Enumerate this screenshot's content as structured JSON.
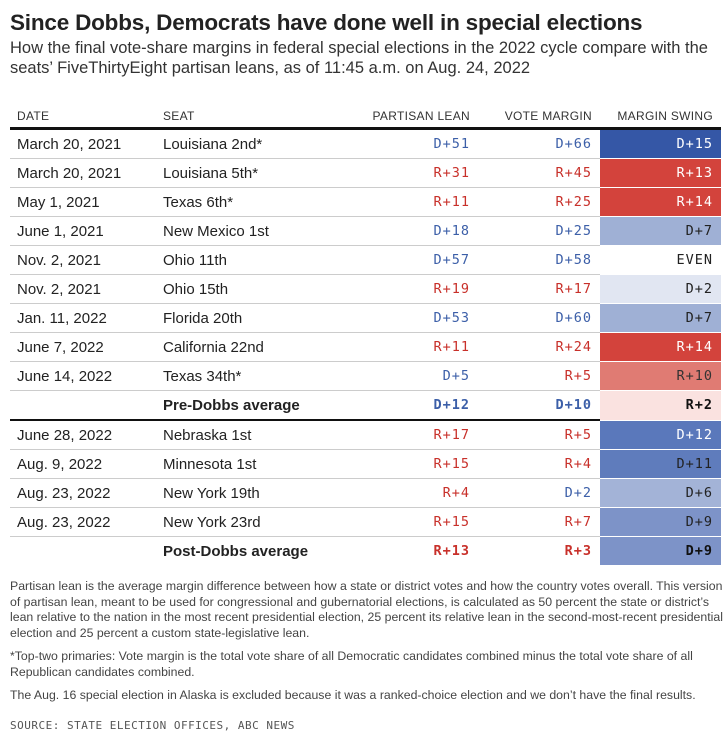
{
  "title": "Since Dobbs, Democrats have done well in special elections",
  "subtitle": "How the final vote-share margins in federal special elections in the 2022 cycle compare with the seats’ FiveThirtyEight partisan leans, as of 11:45 a.m. on Aug. 24, 2022",
  "colors": {
    "dem": "#3c5fa8",
    "rep": "#c8302a"
  },
  "chart_data": {
    "type": "table",
    "columns": [
      "DATE",
      "SEAT",
      "PARTISAN LEAN",
      "VOTE MARGIN",
      "MARGIN SWING"
    ],
    "rows": [
      {
        "date": "March 20, 2021",
        "seat": "Louisiana 2nd*",
        "lean": "D+51",
        "margin": "D+66",
        "swing": "D+15",
        "bg": "#3557a6",
        "fg": "#ffffff"
      },
      {
        "date": "March 20, 2021",
        "seat": "Louisiana 5th*",
        "lean": "R+31",
        "margin": "R+45",
        "swing": "R+13",
        "bg": "#d3433c",
        "fg": "#ffffff"
      },
      {
        "date": "May 1, 2021",
        "seat": "Texas 6th*",
        "lean": "R+11",
        "margin": "R+25",
        "swing": "R+14",
        "bg": "#d3433c",
        "fg": "#ffffff"
      },
      {
        "date": "June 1, 2021",
        "seat": "New Mexico 1st",
        "lean": "D+18",
        "margin": "D+25",
        "swing": "D+7",
        "bg": "#9fb0d5",
        "fg": "#222222"
      },
      {
        "date": "Nov. 2, 2021",
        "seat": "Ohio 11th",
        "lean": "D+57",
        "margin": "D+58",
        "swing": "EVEN",
        "bg": "#ffffff",
        "fg": "#222222"
      },
      {
        "date": "Nov. 2, 2021",
        "seat": "Ohio 15th",
        "lean": "R+19",
        "margin": "R+17",
        "swing": "D+2",
        "bg": "#e1e6f2",
        "fg": "#222222"
      },
      {
        "date": "Jan. 11, 2022",
        "seat": "Florida 20th",
        "lean": "D+53",
        "margin": "D+60",
        "swing": "D+7",
        "bg": "#9fb0d5",
        "fg": "#222222"
      },
      {
        "date": "June 7, 2022",
        "seat": "California 22nd",
        "lean": "R+11",
        "margin": "R+24",
        "swing": "R+14",
        "bg": "#d3433c",
        "fg": "#ffffff"
      },
      {
        "date": "June 14, 2022",
        "seat": "Texas 34th*",
        "lean": "D+5",
        "margin": "R+5",
        "swing": "R+10",
        "bg": "#e07b73",
        "fg": "#333333"
      },
      {
        "date": "",
        "seat": "Pre-Dobbs average",
        "lean": "D+12",
        "margin": "D+10",
        "swing": "R+2",
        "bg": "#fae2e0",
        "fg": "#111111",
        "avg": "pre"
      },
      {
        "date": "June 28, 2022",
        "seat": "Nebraska 1st",
        "lean": "R+17",
        "margin": "R+5",
        "swing": "D+12",
        "bg": "#5a78bb",
        "fg": "#ffffff"
      },
      {
        "date": "Aug. 9, 2022",
        "seat": "Minnesota 1st",
        "lean": "R+15",
        "margin": "R+4",
        "swing": "D+11",
        "bg": "#5f7cbc",
        "fg": "#222222"
      },
      {
        "date": "Aug. 23, 2022",
        "seat": "New York 19th",
        "lean": "R+4",
        "margin": "D+2",
        "swing": "D+6",
        "bg": "#a3b3d7",
        "fg": "#222222"
      },
      {
        "date": "Aug. 23, 2022",
        "seat": "New York 23rd",
        "lean": "R+15",
        "margin": "R+7",
        "swing": "D+9",
        "bg": "#7d93c8",
        "fg": "#222222"
      },
      {
        "date": "",
        "seat": "Post-Dobbs average",
        "lean": "R+13",
        "margin": "R+3",
        "swing": "D+9",
        "bg": "#7d93c8",
        "fg": "#111111",
        "avg": "post"
      }
    ]
  },
  "notes": [
    "Partisan lean is the average margin difference between how a state or district votes and how the country votes overall. This version of partisan lean, meant to be used for congressional and gubernatorial elections, is calculated as 50 percent the state or district’s lean relative to the nation in the most recent presidential election, 25 percent its relative lean in the second-most-recent presidential election and 25 percent a custom state-legislative lean.",
    "*Top-two primaries: Vote margin is the total vote share of all Democratic candidates combined minus the total vote share of all Republican candidates combined.",
    "The Aug. 16 special election in Alaska is excluded because it was a ranked-choice election and we don’t have the final results."
  ],
  "source": "SOURCE: STATE ELECTION OFFICES, ABC NEWS"
}
